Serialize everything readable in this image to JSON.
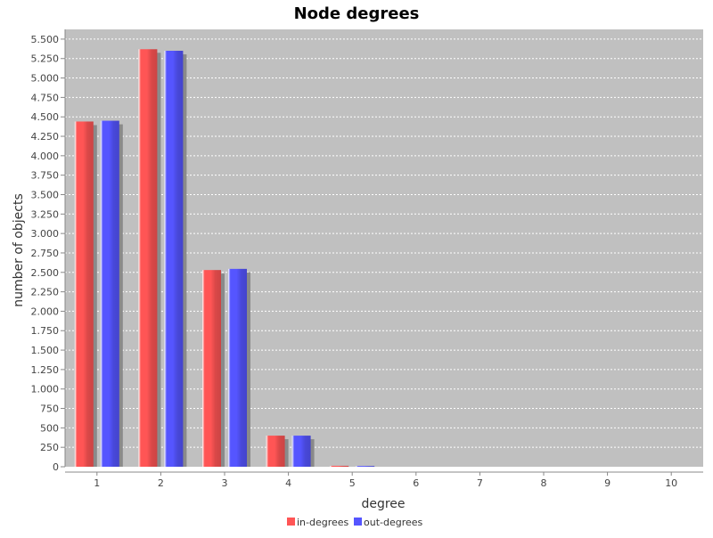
{
  "chart_data": {
    "type": "bar",
    "title": "Node degrees",
    "xlabel": "degree",
    "ylabel": "number of objects",
    "categories": [
      "1",
      "2",
      "3",
      "4",
      "5",
      "6",
      "7",
      "8",
      "9",
      "10"
    ],
    "series": [
      {
        "name": "in-degrees",
        "color": "#ff5555",
        "values": [
          4440,
          5370,
          2530,
          400,
          12,
          0,
          0,
          0,
          0,
          0
        ]
      },
      {
        "name": "out-degrees",
        "color": "#5555ff",
        "values": [
          4450,
          5350,
          2545,
          400,
          10,
          0,
          0,
          0,
          0,
          0
        ]
      }
    ],
    "ylim": [
      0,
      5625
    ],
    "yticks": [
      0,
      250,
      500,
      750,
      1000,
      1250,
      1500,
      1750,
      2000,
      2250,
      2500,
      2750,
      3000,
      3250,
      3500,
      3750,
      4000,
      4250,
      4500,
      4750,
      5000,
      5250,
      5500
    ],
    "ytick_labels": [
      "0",
      "250",
      "500",
      "750",
      "1.000",
      "1.250",
      "1.500",
      "1.750",
      "2.000",
      "2.250",
      "2.500",
      "2.750",
      "3.000",
      "3.250",
      "3.500",
      "3.750",
      "4.000",
      "4.250",
      "4.500",
      "4.750",
      "5.000",
      "5.250",
      "5.500"
    ],
    "grid": true,
    "legend": "bottom-center",
    "plot_background": "#c0c0c0",
    "grid_color": "#ffffff"
  }
}
